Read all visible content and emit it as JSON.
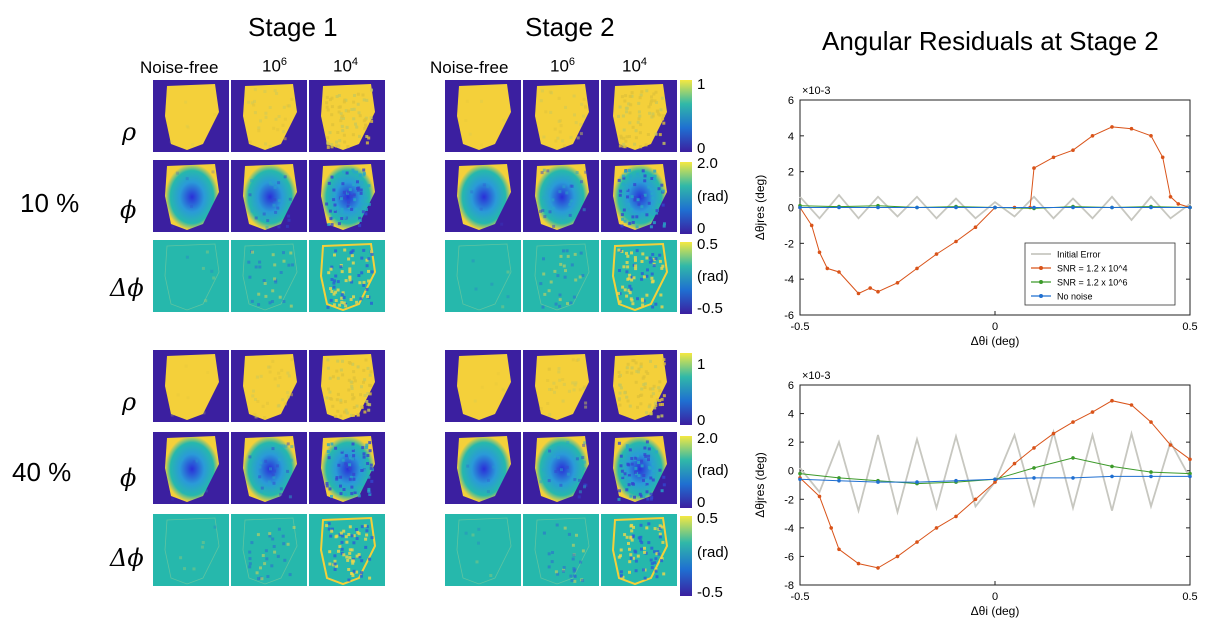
{
  "stage1_title": "Stage 1",
  "stage2_title": "Stage 2",
  "residuals_title": "Angular Residuals at Stage 2",
  "stage1_columns": [
    {
      "main": "Noise-free",
      "sup": ""
    },
    {
      "main": "10",
      "sup": "6"
    },
    {
      "main": "10",
      "sup": "4"
    }
  ],
  "stage2_columns": [
    {
      "main": "Noise-free",
      "sup": ""
    },
    {
      "main": "10",
      "sup": "6"
    },
    {
      "main": "10",
      "sup": "4"
    }
  ],
  "block_labels": [
    "10 %",
    "40 %"
  ],
  "row_symbols": [
    "ρ",
    "ϕ",
    "Δϕ"
  ],
  "colorbars": {
    "rho": {
      "top": "1",
      "bottom": "0"
    },
    "phi": {
      "top": "2.0",
      "mid": "(rad)",
      "bottom": "0"
    },
    "dphi": {
      "top": "0.5",
      "mid": "(rad)",
      "bottom": "-0.5"
    }
  },
  "colors": {
    "background": "#3b1fa0",
    "high": "#f4d03a",
    "teal": "#26b8ac",
    "orange": "#d95319",
    "green": "#3c9a2a",
    "blue": "#1f6fd1",
    "gray": "#c7c7c0"
  },
  "chart_data": [
    {
      "type": "line",
      "xlabel": "Δθi (deg)",
      "ylabel": "Δθjres (deg)",
      "y_multiplier": "×10-3",
      "xlim": [
        -0.5,
        0.5
      ],
      "ylim": [
        -6,
        6
      ],
      "xticks": [
        "-0.5",
        "0",
        "0.5"
      ],
      "yticks": [
        "-6",
        "-4",
        "-2",
        "0",
        "2",
        "4",
        "6"
      ],
      "legend_position": "lower-right",
      "legend": [
        "Initial Error",
        "SNR = 1.2 x 10^4",
        "SNR = 1.2 x 10^6",
        "No noise"
      ],
      "series": [
        {
          "name": "Initial Error",
          "x": [
            -0.5,
            -0.45,
            -0.4,
            -0.35,
            -0.3,
            -0.25,
            -0.2,
            -0.15,
            -0.1,
            -0.05,
            0,
            0.05,
            0.1,
            0.15,
            0.2,
            0.25,
            0.3,
            0.35,
            0.4,
            0.45,
            0.5
          ],
          "y": [
            0.6,
            -0.6,
            0.7,
            -0.6,
            0.6,
            -0.5,
            0.6,
            -0.6,
            0.5,
            -0.6,
            0.3,
            -0.5,
            0.6,
            -0.6,
            0.5,
            -0.6,
            0.6,
            -0.7,
            0.6,
            -0.6,
            0.2
          ]
        },
        {
          "name": "SNR = 1.2 x 10^4",
          "x": [
            -0.5,
            -0.47,
            -0.45,
            -0.43,
            -0.4,
            -0.35,
            -0.32,
            -0.3,
            -0.25,
            -0.2,
            -0.15,
            -0.1,
            -0.05,
            0,
            0.05,
            0.09,
            0.1,
            0.15,
            0.2,
            0.25,
            0.3,
            0.35,
            0.4,
            0.43,
            0.45,
            0.47,
            0.5
          ],
          "y": [
            0,
            -1,
            -2.5,
            -3.4,
            -3.6,
            -4.8,
            -4.5,
            -4.7,
            -4.2,
            -3.4,
            -2.6,
            -1.9,
            -1.1,
            0,
            0,
            0,
            2.2,
            2.8,
            3.2,
            4.0,
            4.5,
            4.4,
            4.0,
            2.8,
            0.6,
            0.2,
            0
          ]
        },
        {
          "name": "SNR = 1.2 x 10^6",
          "x": [
            -0.5,
            -0.4,
            -0.3,
            -0.2,
            -0.1,
            0,
            0.1,
            0.2,
            0.3,
            0.4,
            0.5
          ],
          "y": [
            0.1,
            0.05,
            0.1,
            0,
            0.05,
            0,
            -0.05,
            0.05,
            0,
            0.05,
            0
          ]
        },
        {
          "name": "No noise",
          "x": [
            -0.5,
            -0.4,
            -0.3,
            -0.2,
            -0.1,
            0,
            0.1,
            0.2,
            0.3,
            0.4,
            0.5
          ],
          "y": [
            0,
            0,
            0,
            0,
            0,
            0,
            0,
            0,
            0,
            0,
            0
          ]
        }
      ]
    },
    {
      "type": "line",
      "xlabel": "Δθi (deg)",
      "ylabel": "Δθjres (deg)",
      "y_multiplier": "×10-3",
      "xlim": [
        -0.5,
        0.5
      ],
      "ylim": [
        -8,
        6
      ],
      "xticks": [
        "-0.5",
        "0",
        "0.5"
      ],
      "yticks": [
        "-8",
        "-6",
        "-4",
        "-2",
        "0",
        "2",
        "4",
        "6"
      ],
      "series": [
        {
          "name": "Initial Error",
          "x": [
            -0.5,
            -0.45,
            -0.4,
            -0.35,
            -0.3,
            -0.25,
            -0.2,
            -0.15,
            -0.1,
            -0.05,
            0,
            0.05,
            0.1,
            0.15,
            0.2,
            0.25,
            0.3,
            0.35,
            0.4,
            0.45,
            0.5
          ],
          "y": [
            0.2,
            -1.5,
            2.0,
            -2.8,
            2.5,
            -2.9,
            2.2,
            -2.6,
            2.4,
            -2.5,
            -0.8,
            2.5,
            -2.4,
            2.7,
            -2.6,
            2.5,
            -2.8,
            2.6,
            -2.5,
            2.0,
            -0.5
          ]
        },
        {
          "name": "SNR = 1.2 x 10^4",
          "x": [
            -0.5,
            -0.45,
            -0.42,
            -0.4,
            -0.35,
            -0.3,
            -0.25,
            -0.2,
            -0.15,
            -0.1,
            -0.05,
            0,
            0.05,
            0.1,
            0.15,
            0.2,
            0.25,
            0.3,
            0.35,
            0.4,
            0.45,
            0.5
          ],
          "y": [
            -0.5,
            -1.8,
            -4.0,
            -5.5,
            -6.5,
            -6.8,
            -6.0,
            -5.0,
            -4.0,
            -3.2,
            -2.0,
            -0.8,
            0.5,
            1.6,
            2.6,
            3.4,
            4.1,
            4.9,
            4.6,
            3.4,
            1.8,
            0.8
          ]
        },
        {
          "name": "SNR = 1.2 x 10^6",
          "x": [
            -0.5,
            -0.4,
            -0.3,
            -0.2,
            -0.1,
            0,
            0.1,
            0.2,
            0.3,
            0.4,
            0.5
          ],
          "y": [
            -0.2,
            -0.5,
            -0.7,
            -0.9,
            -0.8,
            -0.6,
            0.2,
            0.9,
            0.3,
            -0.1,
            -0.2
          ]
        },
        {
          "name": "No noise",
          "x": [
            -0.5,
            -0.4,
            -0.3,
            -0.2,
            -0.1,
            0,
            0.1,
            0.2,
            0.3,
            0.4,
            0.5
          ],
          "y": [
            -0.6,
            -0.7,
            -0.8,
            -0.8,
            -0.7,
            -0.6,
            -0.5,
            -0.5,
            -0.4,
            -0.4,
            -0.4
          ]
        }
      ]
    }
  ]
}
